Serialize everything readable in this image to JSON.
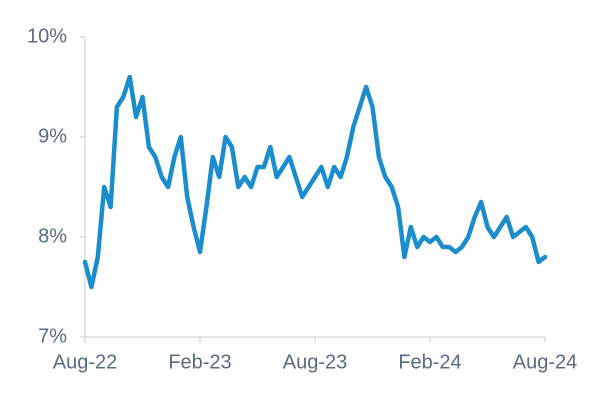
{
  "chart_data": {
    "type": "line",
    "categories": [
      "Aug-22",
      null,
      null,
      null,
      null,
      null,
      null,
      null,
      null,
      null,
      null,
      null,
      null,
      null,
      null,
      null,
      null,
      null,
      "Feb-23",
      null,
      null,
      null,
      null,
      null,
      null,
      null,
      null,
      null,
      null,
      null,
      null,
      null,
      null,
      null,
      null,
      null,
      "Aug-23",
      null,
      null,
      null,
      null,
      null,
      null,
      null,
      null,
      null,
      null,
      null,
      null,
      null,
      null,
      null,
      null,
      null,
      "Feb-24",
      null,
      null,
      null,
      null,
      null,
      null,
      null,
      null,
      null,
      null,
      null,
      null,
      null,
      null,
      null,
      null,
      null,
      "Aug-24"
    ],
    "series": [
      {
        "color": "#1b8dcc",
        "values": [
          7.75,
          7.5,
          7.8,
          8.5,
          8.3,
          9.3,
          9.4,
          9.6,
          9.2,
          9.4,
          8.9,
          8.8,
          8.6,
          8.5,
          8.8,
          9.0,
          8.4,
          8.1,
          7.85,
          8.3,
          8.8,
          8.6,
          9.0,
          8.9,
          8.5,
          8.6,
          8.5,
          8.7,
          8.7,
          8.9,
          8.6,
          8.7,
          8.8,
          8.6,
          8.4,
          8.5,
          8.6,
          8.7,
          8.5,
          8.7,
          8.6,
          8.8,
          9.1,
          9.3,
          9.5,
          9.3,
          8.8,
          8.6,
          8.5,
          8.3,
          7.8,
          8.1,
          7.9,
          8.0,
          7.95,
          8.0,
          7.9,
          7.9,
          7.85,
          7.9,
          8.0,
          8.2,
          8.35,
          8.1,
          8.0,
          8.1,
          8.2,
          8.0,
          8.05,
          8.1,
          8.0,
          7.75,
          7.8
        ]
      }
    ],
    "ylim": [
      7,
      10
    ],
    "yticks": [
      {
        "value": 7,
        "label": "7%"
      },
      {
        "value": 8,
        "label": "8%"
      },
      {
        "value": 9,
        "label": "9%"
      },
      {
        "value": 10,
        "label": "10%"
      }
    ]
  }
}
